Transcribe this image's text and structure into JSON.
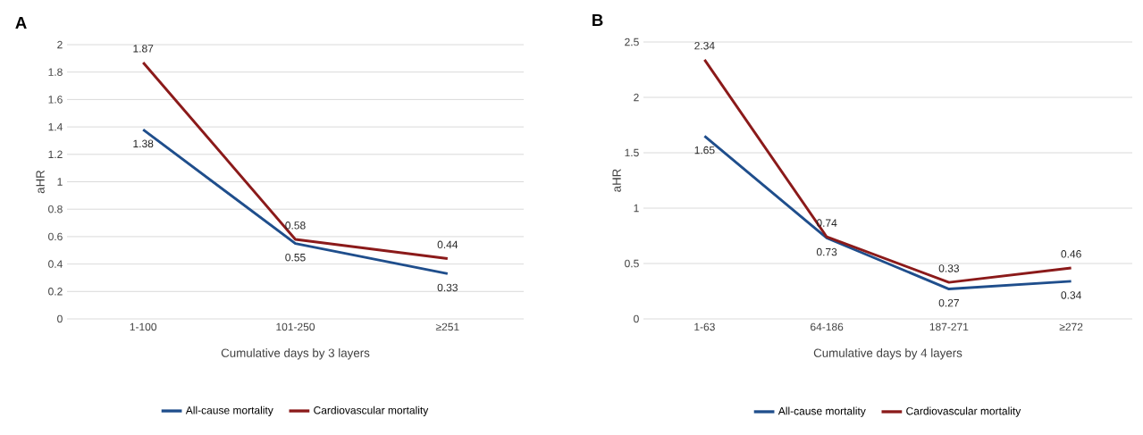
{
  "chart_data": [
    {
      "type": "line",
      "title": "A",
      "xlabel": "Cumulative days by 3 layers",
      "ylabel": "aHR",
      "categories": [
        "1-100",
        "101-250",
        "≥251"
      ],
      "series": [
        {
          "name": "All-cause mortality",
          "color": "#1f4e8c",
          "values": [
            1.38,
            0.55,
            0.33
          ]
        },
        {
          "name": "Cardiovascular mortality",
          "color": "#8b1a1a",
          "values": [
            1.87,
            0.58,
            0.44
          ]
        }
      ],
      "ylim": [
        0,
        2
      ],
      "yticks": [
        0,
        0.2,
        0.4,
        0.6,
        0.8,
        1,
        1.2,
        1.4,
        1.6,
        1.8,
        2
      ],
      "grid": "y",
      "legend": "bottom",
      "data_labels": true
    },
    {
      "type": "line",
      "title": "B",
      "xlabel": "Cumulative days by 4 layers",
      "ylabel": "aHR",
      "categories": [
        "1-63",
        "64-186",
        "187-271",
        "≥272"
      ],
      "series": [
        {
          "name": "All-cause mortality",
          "color": "#1f4e8c",
          "values": [
            1.65,
            0.73,
            0.27,
            0.34
          ]
        },
        {
          "name": "Cardiovascular mortality",
          "color": "#8b1a1a",
          "values": [
            2.34,
            0.74,
            0.33,
            0.46
          ]
        }
      ],
      "ylim": [
        0,
        2.5
      ],
      "yticks": [
        0,
        0.5,
        1,
        1.5,
        2,
        2.5
      ],
      "grid": "y",
      "legend": "bottom",
      "data_labels": true
    }
  ]
}
